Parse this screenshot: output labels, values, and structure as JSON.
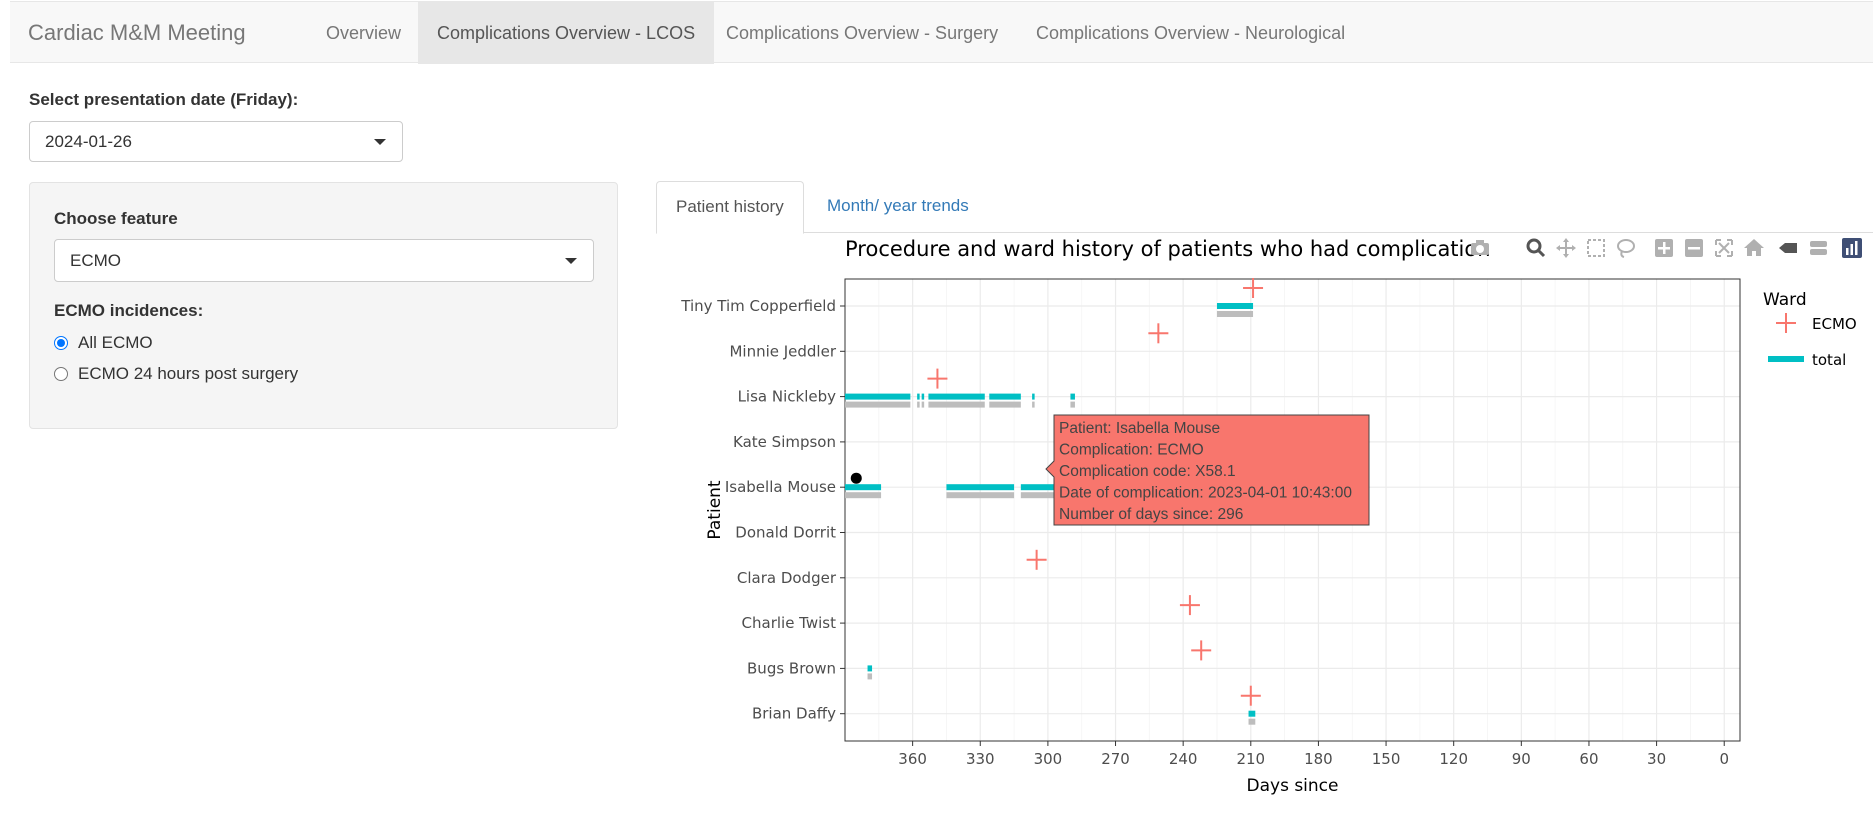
{
  "navbar": {
    "brand": "Cardiac M&M Meeting",
    "tabs": [
      {
        "label": "Overview"
      },
      {
        "label": "Complications Overview - LCOS"
      },
      {
        "label": "Complications Overview - Surgery"
      },
      {
        "label": "Complications Overview - Neurological"
      }
    ]
  },
  "date_select": {
    "label": "Select presentation date (Friday):",
    "value": "2024-01-26"
  },
  "sidebar": {
    "feature_label": "Choose feature",
    "feature_value": "ECMO",
    "incidences_label": "ECMO incidences:",
    "options": [
      {
        "label": "All ECMO",
        "checked": true
      },
      {
        "label": "ECMO 24 hours post surgery",
        "checked": false
      }
    ]
  },
  "main_tabs": [
    {
      "label": "Patient history",
      "active": true
    },
    {
      "label": "Month/ year trends",
      "active": false
    }
  ],
  "modebar": {
    "icons": [
      "camera-icon",
      "zoom-icon",
      "pan-icon",
      "box-select-icon",
      "lasso-icon",
      "zoom-in-icon",
      "zoom-out-icon",
      "autoscale-icon",
      "reset-axes-icon",
      "spike-lines-icon",
      "compare-hover-icon",
      "plotly-logo-icon"
    ]
  },
  "chart_data": {
    "type": "scatter",
    "title": "Procedure and ward history of patients who had complication",
    "xlabel": "Days since",
    "ylabel": "Patient",
    "xlim": [
      390,
      -7
    ],
    "x_ticks": [
      360,
      330,
      300,
      270,
      240,
      210,
      180,
      150,
      120,
      90,
      60,
      30,
      0
    ],
    "categories": [
      "Tiny Tim Copperfield",
      "Minnie Jeddler",
      "Lisa Nickleby",
      "Kate Simpson",
      "Isabella Mouse",
      "Donald Dorrit",
      "Clara Dodger",
      "Charlie Twist",
      "Bugs Brown",
      "Brian Daffy"
    ],
    "grid": true,
    "legend": {
      "title": "Ward",
      "placement": "right",
      "entries": [
        {
          "name": "ECMO",
          "color": "#f8766d",
          "symbol": "cross"
        },
        {
          "name": "total",
          "color": "#00bfc4",
          "symbol": "line"
        }
      ]
    },
    "ecmo_points": [
      {
        "patient": "Tiny Tim Copperfield",
        "x": 209
      },
      {
        "patient": "Minnie Jeddler",
        "x": 251
      },
      {
        "patient": "Lisa Nickleby",
        "x": 349
      },
      {
        "patient": "Isabella Mouse",
        "x": 296
      },
      {
        "patient": "Clara Dodger",
        "x": 305
      },
      {
        "patient": "Charlie Twist",
        "x": 237
      },
      {
        "patient": "Bugs Brown",
        "x": 232
      },
      {
        "patient": "Brian Daffy",
        "x": 210
      }
    ],
    "ward_segments": [
      {
        "patient": "Tiny Tim Copperfield",
        "from": 225,
        "to": 209
      },
      {
        "patient": "Lisa Nickleby",
        "from": 390,
        "to": 361
      },
      {
        "patient": "Lisa Nickleby",
        "from": 358,
        "to": 357
      },
      {
        "patient": "Lisa Nickleby",
        "from": 356,
        "to": 355
      },
      {
        "patient": "Lisa Nickleby",
        "from": 353,
        "to": 328
      },
      {
        "patient": "Lisa Nickleby",
        "from": 326,
        "to": 312
      },
      {
        "patient": "Lisa Nickleby",
        "from": 307,
        "to": 306
      },
      {
        "patient": "Lisa Nickleby",
        "from": 290,
        "to": 288
      },
      {
        "patient": "Isabella Mouse",
        "from": 390,
        "to": 374
      },
      {
        "patient": "Isabella Mouse",
        "from": 345,
        "to": 315
      },
      {
        "patient": "Isabella Mouse",
        "from": 312,
        "to": 296
      },
      {
        "patient": "Bugs Brown",
        "from": 380,
        "to": 378
      },
      {
        "patient": "Brian Daffy",
        "from": 211,
        "to": 208
      }
    ],
    "hover_point": {
      "patient": "Isabella Mouse",
      "x": 385
    }
  },
  "tooltip": {
    "lines": [
      "Patient: Isabella Mouse",
      "Complication: ECMO",
      "Complication code: X58.1",
      "Date of complication: 2023-04-01 10:43:00",
      "Number of days since: 296"
    ],
    "color": "#f8766d"
  }
}
